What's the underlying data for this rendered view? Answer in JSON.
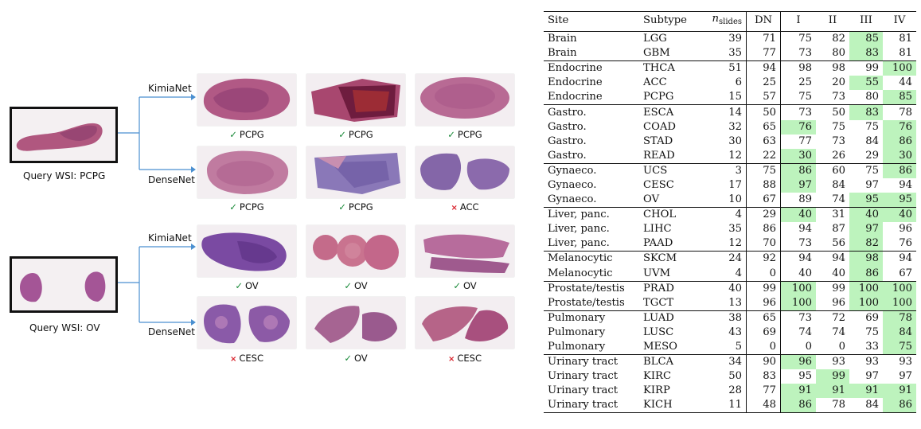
{
  "figure": {
    "queries": [
      {
        "caption": "Query WSI: PCPG",
        "branches": [
          {
            "label": "KimiaNet",
            "results": [
              {
                "status": "ok",
                "label": "PCPG"
              },
              {
                "status": "ok",
                "label": "PCPG"
              },
              {
                "status": "ok",
                "label": "PCPG"
              }
            ]
          },
          {
            "label": "DenseNet",
            "results": [
              {
                "status": "ok",
                "label": "PCPG"
              },
              {
                "status": "ok",
                "label": "PCPG"
              },
              {
                "status": "bad",
                "label": "ACC"
              }
            ]
          }
        ]
      },
      {
        "caption": "Query WSI: OV",
        "branches": [
          {
            "label": "KimiaNet",
            "results": [
              {
                "status": "ok",
                "label": "OV"
              },
              {
                "status": "ok",
                "label": "OV"
              },
              {
                "status": "ok",
                "label": "OV"
              }
            ]
          },
          {
            "label": "DenseNet",
            "results": [
              {
                "status": "bad",
                "label": "CESC"
              },
              {
                "status": "ok",
                "label": "OV"
              },
              {
                "status": "bad",
                "label": "CESC"
              }
            ]
          }
        ]
      }
    ],
    "check_glyph": "✓",
    "cross_glyph": "×",
    "colors": {
      "ok": "#1a8a3a",
      "bad": "#d8202a",
      "highlight": "#bdf3bd",
      "connector": "#4a8fd0",
      "tissue_pink": "#b85a8c",
      "tissue_purple": "#7a4a9a"
    }
  },
  "table": {
    "headers": {
      "site": "Site",
      "subtype": "Subtype",
      "n_main": "n",
      "n_sub": "slides",
      "dn": "DN",
      "c1": "I",
      "c2": "II",
      "c3": "III",
      "c4": "IV"
    },
    "rows": [
      {
        "site": "Brain",
        "subtype": "LGG",
        "n": "39",
        "dn": "71",
        "v": [
          "75",
          "82",
          "85",
          "81"
        ],
        "hl": [
          2
        ],
        "gs": true
      },
      {
        "site": "Brain",
        "subtype": "GBM",
        "n": "35",
        "dn": "77",
        "v": [
          "73",
          "80",
          "83",
          "81"
        ],
        "hl": [
          2
        ]
      },
      {
        "site": "Endocrine",
        "subtype": "THCA",
        "n": "51",
        "dn": "94",
        "v": [
          "98",
          "98",
          "99",
          "100"
        ],
        "hl": [
          3
        ],
        "gs": true
      },
      {
        "site": "Endocrine",
        "subtype": "ACC",
        "n": "6",
        "dn": "25",
        "v": [
          "25",
          "20",
          "55",
          "44"
        ],
        "hl": [
          2
        ]
      },
      {
        "site": "Endocrine",
        "subtype": "PCPG",
        "n": "15",
        "dn": "57",
        "v": [
          "75",
          "73",
          "80",
          "85"
        ],
        "hl": [
          3
        ]
      },
      {
        "site": "Gastro.",
        "subtype": "ESCA",
        "n": "14",
        "dn": "50",
        "v": [
          "73",
          "50",
          "83",
          "78"
        ],
        "hl": [
          2
        ],
        "gs": true
      },
      {
        "site": "Gastro.",
        "subtype": "COAD",
        "n": "32",
        "dn": "65",
        "v": [
          "76",
          "75",
          "75",
          "76"
        ],
        "hl": [
          0,
          3
        ]
      },
      {
        "site": "Gastro.",
        "subtype": "STAD",
        "n": "30",
        "dn": "63",
        "v": [
          "77",
          "73",
          "84",
          "86"
        ],
        "hl": [
          3
        ]
      },
      {
        "site": "Gastro.",
        "subtype": "READ",
        "n": "12",
        "dn": "22",
        "v": [
          "30",
          "26",
          "29",
          "30"
        ],
        "hl": [
          0,
          3
        ]
      },
      {
        "site": "Gynaeco.",
        "subtype": "UCS",
        "n": "3",
        "dn": "75",
        "v": [
          "86",
          "60",
          "75",
          "86"
        ],
        "hl": [
          0,
          3
        ],
        "gs": true
      },
      {
        "site": "Gynaeco.",
        "subtype": "CESC",
        "n": "17",
        "dn": "88",
        "v": [
          "97",
          "84",
          "97",
          "94"
        ],
        "hl": [
          0
        ]
      },
      {
        "site": "Gynaeco.",
        "subtype": "OV",
        "n": "10",
        "dn": "67",
        "v": [
          "89",
          "74",
          "95",
          "95"
        ],
        "hl": [
          2,
          3
        ]
      },
      {
        "site": "Liver, panc.",
        "subtype": "CHOL",
        "n": "4",
        "dn": "29",
        "v": [
          "40",
          "31",
          "40",
          "40"
        ],
        "hl": [
          0,
          2,
          3
        ],
        "gs": true
      },
      {
        "site": "Liver, panc.",
        "subtype": "LIHC",
        "n": "35",
        "dn": "86",
        "v": [
          "94",
          "87",
          "97",
          "96"
        ],
        "hl": [
          2
        ]
      },
      {
        "site": "Liver, panc.",
        "subtype": "PAAD",
        "n": "12",
        "dn": "70",
        "v": [
          "73",
          "56",
          "82",
          "76"
        ],
        "hl": [
          2
        ]
      },
      {
        "site": "Melanocytic",
        "subtype": "SKCM",
        "n": "24",
        "dn": "92",
        "v": [
          "94",
          "94",
          "98",
          "94"
        ],
        "hl": [
          2
        ],
        "gs": true
      },
      {
        "site": "Melanocytic",
        "subtype": "UVM",
        "n": "4",
        "dn": "0",
        "v": [
          "40",
          "40",
          "86",
          "67"
        ],
        "hl": [
          2
        ]
      },
      {
        "site": "Prostate/testis",
        "subtype": "PRAD",
        "n": "40",
        "dn": "99",
        "v": [
          "100",
          "99",
          "100",
          "100"
        ],
        "hl": [
          0,
          2,
          3
        ],
        "gs": true
      },
      {
        "site": "Prostate/testis",
        "subtype": "TGCT",
        "n": "13",
        "dn": "96",
        "v": [
          "100",
          "96",
          "100",
          "100"
        ],
        "hl": [
          0,
          2,
          3
        ]
      },
      {
        "site": "Pulmonary",
        "subtype": "LUAD",
        "n": "38",
        "dn": "65",
        "v": [
          "73",
          "72",
          "69",
          "78"
        ],
        "hl": [
          3
        ],
        "gs": true
      },
      {
        "site": "Pulmonary",
        "subtype": "LUSC",
        "n": "43",
        "dn": "69",
        "v": [
          "74",
          "74",
          "75",
          "84"
        ],
        "hl": [
          3
        ]
      },
      {
        "site": "Pulmonary",
        "subtype": "MESO",
        "n": "5",
        "dn": "0",
        "v": [
          "0",
          "0",
          "33",
          "75"
        ],
        "hl": [
          3
        ]
      },
      {
        "site": "Urinary tract",
        "subtype": "BLCA",
        "n": "34",
        "dn": "90",
        "v": [
          "96",
          "93",
          "93",
          "93"
        ],
        "hl": [
          0
        ],
        "gs": true
      },
      {
        "site": "Urinary tract",
        "subtype": "KIRC",
        "n": "50",
        "dn": "83",
        "v": [
          "95",
          "99",
          "97",
          "97"
        ],
        "hl": [
          1
        ]
      },
      {
        "site": "Urinary tract",
        "subtype": "KIRP",
        "n": "28",
        "dn": "77",
        "v": [
          "91",
          "91",
          "91",
          "91"
        ],
        "hl": [
          0,
          1,
          2,
          3
        ]
      },
      {
        "site": "Urinary tract",
        "subtype": "KICH",
        "n": "11",
        "dn": "48",
        "v": [
          "86",
          "78",
          "84",
          "86"
        ],
        "hl": [
          0,
          3
        ],
        "last": true
      }
    ]
  }
}
